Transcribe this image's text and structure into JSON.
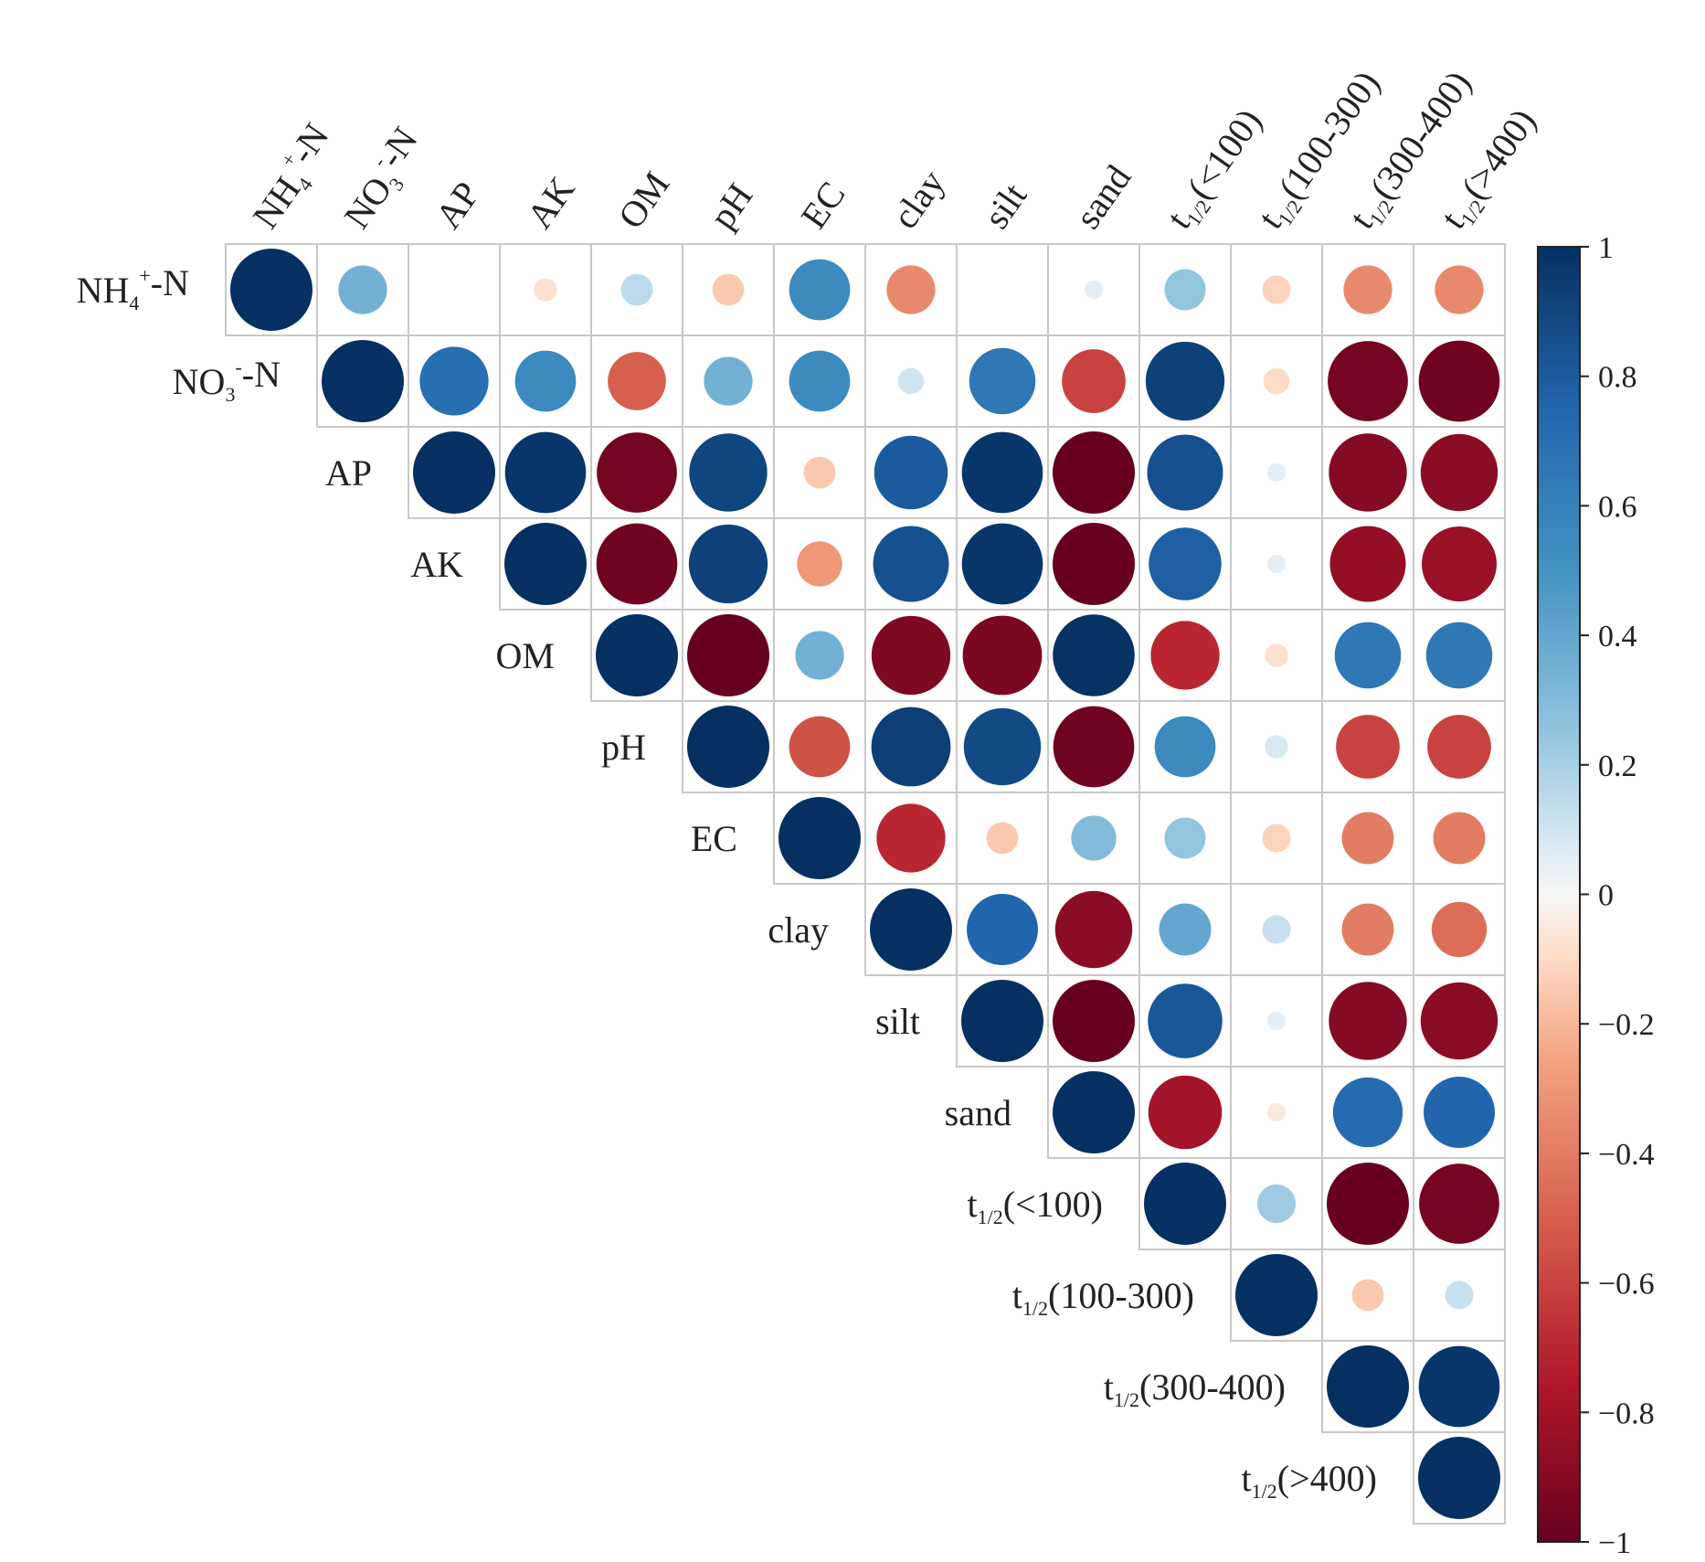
{
  "chart_data": {
    "type": "heatmap",
    "style": "upper-triangular correlation circle plot",
    "variables": [
      {
        "main": "NH",
        "sub": "4",
        "sup": "+",
        "tail": "-N"
      },
      {
        "main": "NO",
        "sub": "3",
        "sup": "-",
        "tail": "-N"
      },
      {
        "main": "AP",
        "sub": "",
        "sup": "",
        "tail": ""
      },
      {
        "main": "AK",
        "sub": "",
        "sup": "",
        "tail": ""
      },
      {
        "main": "OM",
        "sub": "",
        "sup": "",
        "tail": ""
      },
      {
        "main": "pH",
        "sub": "",
        "sup": "",
        "tail": ""
      },
      {
        "main": "EC",
        "sub": "",
        "sup": "",
        "tail": ""
      },
      {
        "main": "clay",
        "sub": "",
        "sup": "",
        "tail": ""
      },
      {
        "main": "silt",
        "sub": "",
        "sup": "",
        "tail": ""
      },
      {
        "main": "sand",
        "sub": "",
        "sup": "",
        "tail": ""
      },
      {
        "main": "t",
        "sub": "1/2",
        "sup": "",
        "tail": "(<100)"
      },
      {
        "main": "t",
        "sub": "1/2",
        "sup": "",
        "tail": "(100-300)"
      },
      {
        "main": "t",
        "sub": "1/2",
        "sup": "",
        "tail": "(300-400)"
      },
      {
        "main": "t",
        "sub": "1/2",
        "sup": "",
        "tail": "(>400)"
      }
    ],
    "matrix_upper": [
      [
        1.0,
        0.35,
        0.0,
        -0.08,
        0.15,
        -0.15,
        0.55,
        -0.35,
        0.0,
        0.05,
        0.25,
        -0.12,
        -0.35,
        -0.35
      ],
      [
        1.0,
        0.7,
        0.55,
        -0.5,
        0.35,
        0.55,
        0.1,
        0.65,
        -0.6,
        0.92,
        -0.1,
        -0.95,
        -0.97
      ],
      [
        1.0,
        0.97,
        -0.95,
        0.9,
        -0.15,
        0.8,
        0.97,
        -1.0,
        0.85,
        0.05,
        -0.9,
        -0.88
      ],
      [
        1.0,
        -0.97,
        0.92,
        -0.3,
        0.85,
        0.97,
        -1.0,
        0.78,
        0.05,
        -0.85,
        -0.83
      ],
      [
        1.0,
        -1.0,
        0.35,
        -0.92,
        -0.93,
        0.99,
        -0.7,
        -0.08,
        0.65,
        0.65
      ],
      [
        1.0,
        -0.55,
        0.93,
        0.88,
        -0.97,
        0.55,
        0.08,
        -0.6,
        -0.6
      ],
      [
        1.0,
        -0.7,
        -0.15,
        0.3,
        0.25,
        -0.12,
        -0.4,
        -0.4
      ],
      [
        1.0,
        0.75,
        -0.88,
        0.4,
        0.12,
        -0.4,
        -0.45
      ],
      [
        1.0,
        -1.0,
        0.82,
        0.05,
        -0.9,
        -0.88
      ],
      [
        1.0,
        -0.8,
        -0.05,
        0.72,
        0.75
      ],
      [
        1.0,
        0.22,
        -1.0,
        -0.95
      ],
      [
        1.0,
        -0.15,
        0.12
      ],
      [
        1.0,
        0.97
      ],
      [
        1.0
      ]
    ],
    "colorbar": {
      "range": [
        -1,
        1
      ],
      "ticks": [
        "1",
        "0.8",
        "0.6",
        "0.4",
        "0.2",
        "0",
        "−0.2",
        "−0.4",
        "−0.6",
        "−0.8",
        "−1"
      ],
      "tick_values": [
        1,
        0.8,
        0.6,
        0.4,
        0.2,
        0,
        -0.2,
        -0.4,
        -0.6,
        -0.8,
        -1
      ],
      "cmap": "RdBu",
      "low_color": "#67001f",
      "high_color": "#053061"
    },
    "title": "",
    "xlabel": "",
    "ylabel": ""
  }
}
